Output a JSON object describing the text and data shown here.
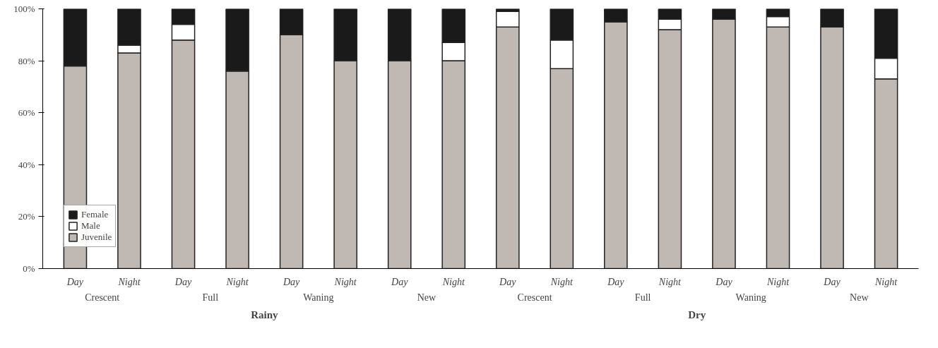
{
  "chart_data": {
    "type": "bar",
    "stacked": true,
    "categories": [
      "Day",
      "Night",
      "Day",
      "Night",
      "Day",
      "Night",
      "Day",
      "Night",
      "Day",
      "Night",
      "Day",
      "Night",
      "Day",
      "Night",
      "Day",
      "Night"
    ],
    "series": [
      {
        "name": "Juvenile",
        "color": "#c0b8b2",
        "values": [
          78,
          83,
          88,
          76,
          90,
          80,
          80,
          80,
          93,
          77,
          95,
          92,
          96,
          93,
          93,
          73
        ]
      },
      {
        "name": "Male",
        "color": "#ffffff",
        "values": [
          0,
          3,
          6,
          0,
          0,
          0,
          0,
          7,
          6,
          11,
          0,
          4,
          0,
          4,
          0,
          8
        ]
      },
      {
        "name": "Female",
        "color": "#1a1a1a",
        "values": [
          22,
          14,
          6,
          24,
          10,
          20,
          20,
          13,
          1,
          12,
          5,
          4,
          4,
          3,
          7,
          19
        ]
      }
    ],
    "annotations": [
      "Crescent",
      "Full",
      "Waning",
      "New",
      "Crescent",
      "Full",
      "Waning",
      "New",
      "Rainy",
      "Dry"
    ],
    "ylim": [
      0,
      100
    ],
    "yticks": [
      {
        "value": 0,
        "label": "0%"
      },
      {
        "value": 20,
        "label": "20%"
      },
      {
        "value": 40,
        "label": "40%"
      },
      {
        "value": 60,
        "label": "60%"
      },
      {
        "value": 80,
        "label": "80%"
      },
      {
        "value": 100,
        "label": "100%"
      }
    ],
    "legend": "bottom left",
    "grid": false
  }
}
